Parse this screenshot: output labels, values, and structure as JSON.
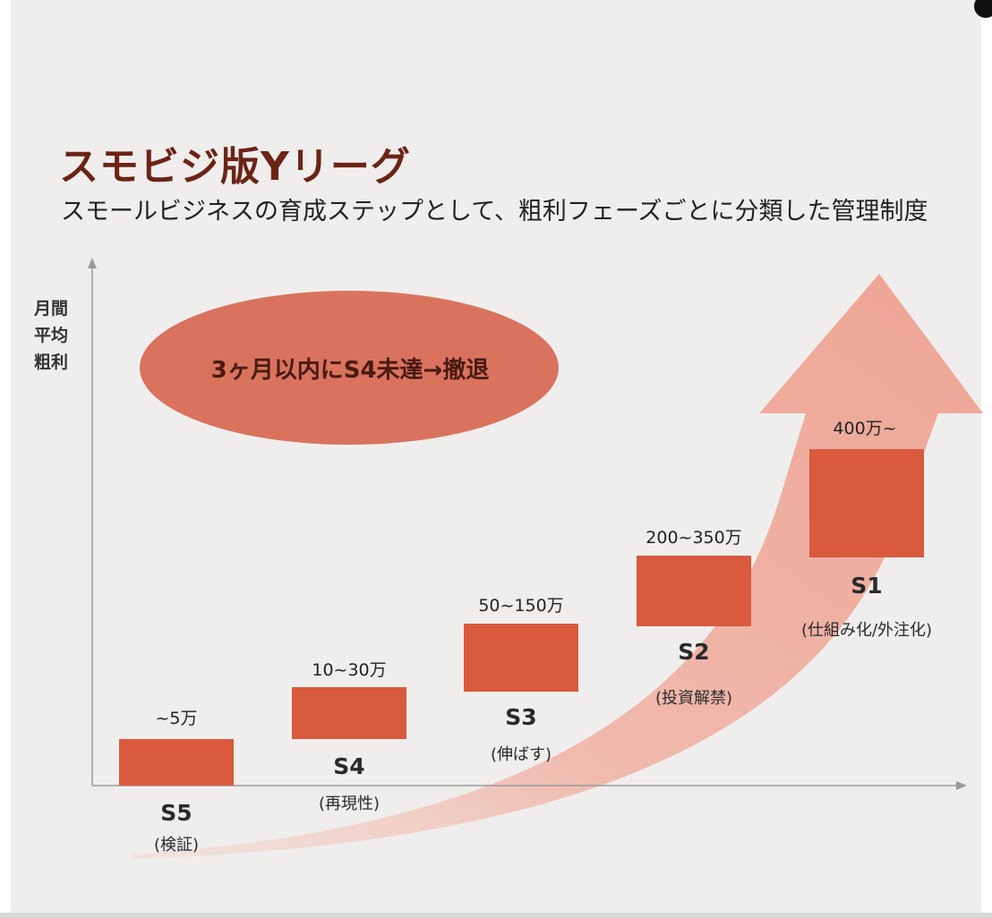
{
  "title": "スモビジ版Yリーグ",
  "subtitle": "スモールビジネスの育成ステップとして、粗利フェーズごとに分類した管理制度",
  "y_axis_label": [
    "月間",
    "平均",
    "粗利"
  ],
  "callout": "3ヶ月以内にS4未達→撤退",
  "colors": {
    "accent": "#d95a3c",
    "title": "#6b2416",
    "oval": "#d9735e",
    "arrow": "#f0a898",
    "background": "#efeeed"
  },
  "stages": [
    {
      "name": "S5",
      "note": "(検証)",
      "range": "~5万"
    },
    {
      "name": "S4",
      "note": "(再現性)",
      "range": "10~30万"
    },
    {
      "name": "S3",
      "note": "(伸ばす)",
      "range": "50~150万"
    },
    {
      "name": "S2",
      "note": "(投資解禁)",
      "range": "200~350万"
    },
    {
      "name": "S1",
      "note": "(仕組み化/外注化)",
      "range": "400万~"
    }
  ]
}
